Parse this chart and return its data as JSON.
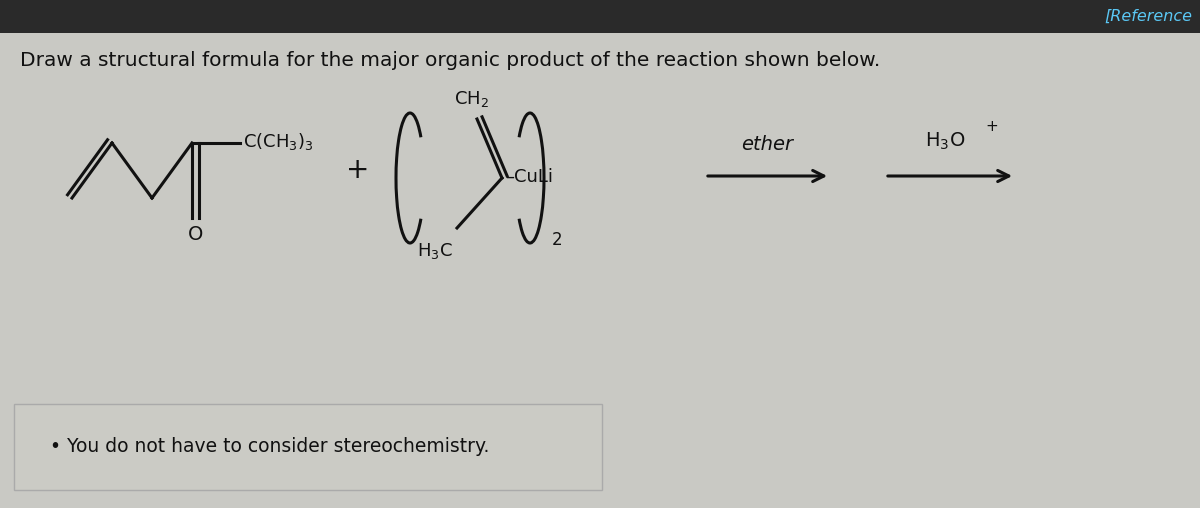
{
  "bg_color": "#c9c9c4",
  "header_color": "#2a2a2a",
  "header_text": "[Reference",
  "header_text_color": "#5bc8f5",
  "title": "Draw a structural formula for the major organic product of the reaction shown below.",
  "title_fontsize": 14.5,
  "note_text": "• You do not have to consider stereochemistry.",
  "note_fontsize": 13.5,
  "note_box_color": "#cbcbc5",
  "note_box_edge": "#aaaaaa",
  "text_color": "#111111"
}
